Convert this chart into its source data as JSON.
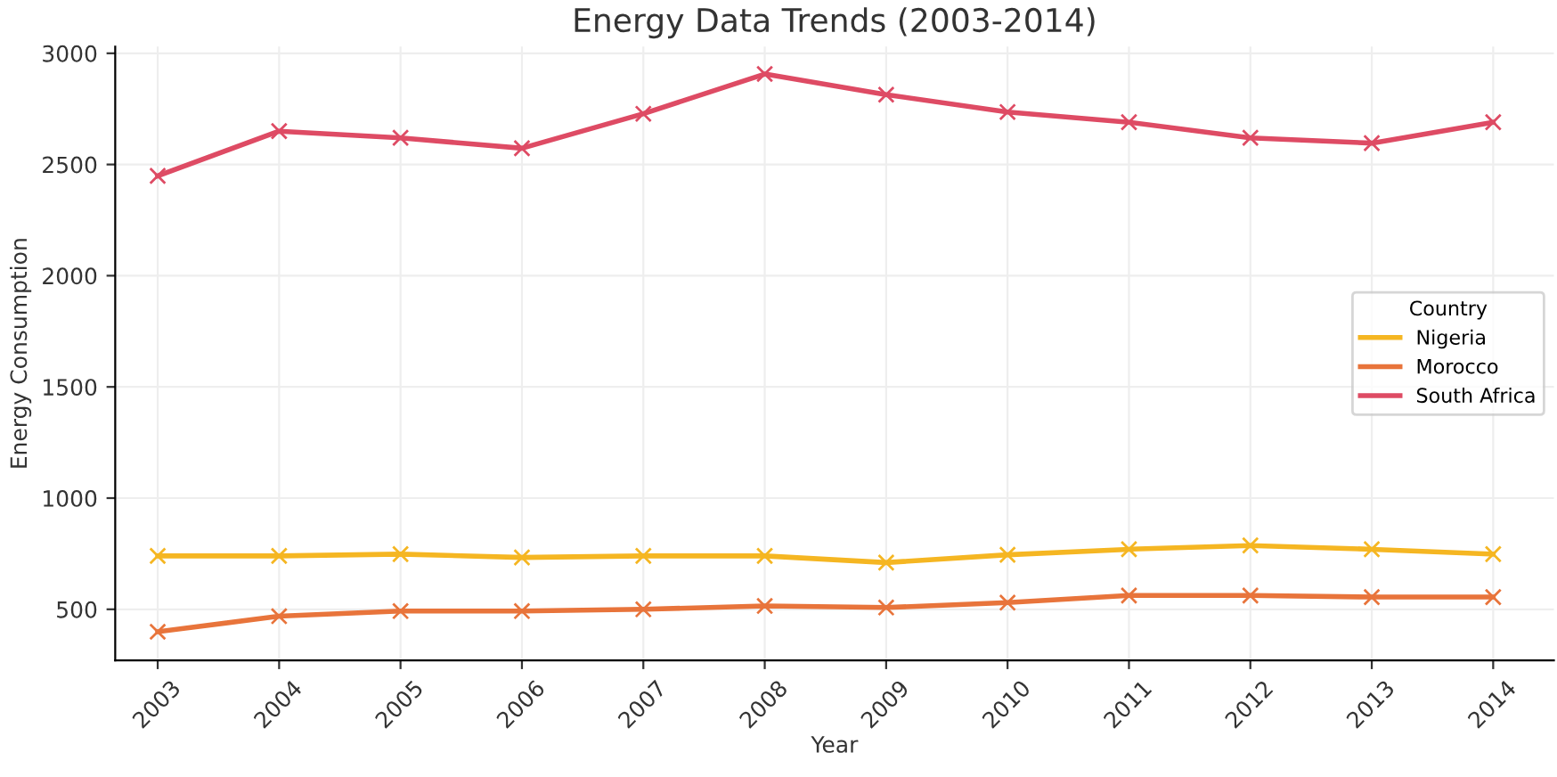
{
  "chart_data": {
    "type": "line",
    "title": "Energy Data Trends (2003-2014)",
    "xlabel": "Year",
    "ylabel": "Energy Consumption",
    "legend_title": "Country",
    "categories": [
      "2003",
      "2004",
      "2005",
      "2006",
      "2007",
      "2008",
      "2009",
      "2010",
      "2011",
      "2012",
      "2013",
      "2014"
    ],
    "series": [
      {
        "name": "Nigeria",
        "color": "#f5b622",
        "values": [
          740,
          740,
          748,
          733,
          740,
          740,
          710,
          745,
          770,
          787,
          770,
          748
        ]
      },
      {
        "name": "Morocco",
        "color": "#e8743b",
        "values": [
          399,
          469,
          492,
          492,
          500,
          515,
          508,
          530,
          562,
          562,
          555,
          555
        ]
      },
      {
        "name": "South Africa",
        "color": "#de4b64",
        "values": [
          2449,
          2650,
          2620,
          2573,
          2728,
          2907,
          2814,
          2736,
          2690,
          2620,
          2596,
          2690
        ]
      }
    ],
    "ylim": [
      270,
      3030
    ],
    "yticks": [
      500,
      1000,
      1500,
      2000,
      2500,
      3000
    ],
    "grid": true,
    "legend": "right",
    "marker": "cross",
    "line_style": "solid"
  }
}
